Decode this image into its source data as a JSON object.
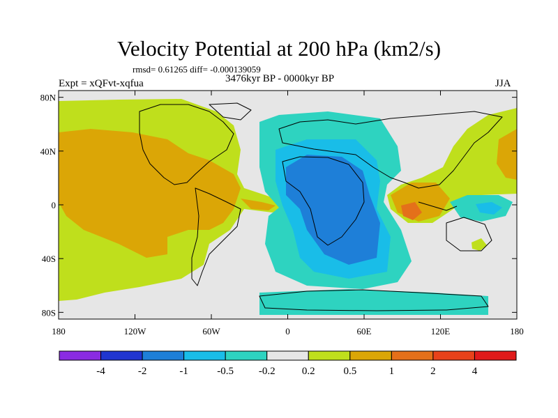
{
  "title": "Velocity Potential at 200 hPa (km2/s)",
  "stats": "rmsd= 0.61265 diff= -0.000139059",
  "expt_label": "Expt = xQFvt-xqfua",
  "period": "3476kyr BP - 0000kyr BP",
  "season": "JJA",
  "lat_ticks": [
    "80N",
    "40N",
    "0",
    "40S",
    "80S"
  ],
  "lon_ticks": [
    "180",
    "120W",
    "60W",
    "0",
    "60E",
    "120E",
    "180"
  ],
  "colorbar": {
    "labels": [
      "-4",
      "-2",
      "-1",
      "-0.5",
      "-0.2",
      "0.2",
      "0.5",
      "1",
      "2",
      "4"
    ],
    "colors": [
      "#8a2be2",
      "#2035d0",
      "#1e7fd8",
      "#19bde8",
      "#2ed3c0",
      "#e6e6e6",
      "#bfdf1c",
      "#dba606",
      "#e4701a",
      "#e8421a",
      "#e01a1a"
    ]
  },
  "field_colors": {
    "ocean_land_neutral": "#e6e6e6",
    "pos_weak": "#bfdf1c",
    "pos_mid": "#dba606",
    "pos_strong": "#e4701a",
    "neg_weak": "#2ed3c0",
    "neg_mid": "#19bde8",
    "neg_strong": "#1e7fd8"
  }
}
